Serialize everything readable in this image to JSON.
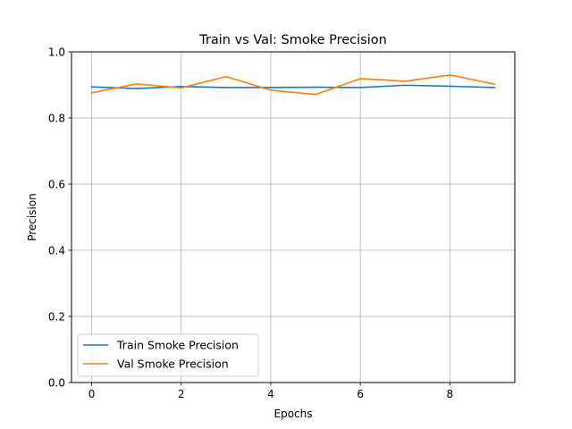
{
  "chart_data": {
    "type": "line",
    "title": "Train vs Val: Smoke Precision",
    "xlabel": "Epochs",
    "ylabel": "Precision",
    "xlim": [
      -0.45,
      9.45
    ],
    "ylim": [
      0.0,
      1.0
    ],
    "x_ticks": [
      0,
      2,
      4,
      6,
      8
    ],
    "y_ticks": [
      0.0,
      0.2,
      0.4,
      0.6,
      0.8,
      1.0
    ],
    "grid": true,
    "legend_position": "lower-left",
    "x": [
      0,
      1,
      2,
      3,
      4,
      5,
      6,
      7,
      8,
      9
    ],
    "series": [
      {
        "name": "Train Smoke Precision",
        "color": "#1f77b4",
        "values": [
          0.894,
          0.889,
          0.895,
          0.892,
          0.892,
          0.893,
          0.892,
          0.899,
          0.896,
          0.892
        ]
      },
      {
        "name": "Val Smoke Precision",
        "color": "#ff7f0e",
        "values": [
          0.876,
          0.903,
          0.891,
          0.925,
          0.884,
          0.871,
          0.919,
          0.911,
          0.93,
          0.902
        ]
      }
    ]
  }
}
